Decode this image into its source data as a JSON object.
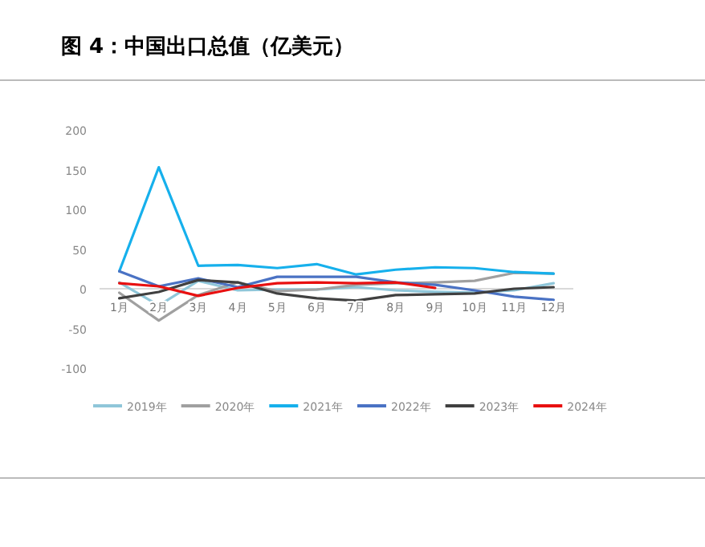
{
  "chart_data": {
    "type": "line",
    "title": "图 4：中国出口总值（亿美元）",
    "categories": [
      "1月",
      "2月",
      "3月",
      "4月",
      "5月",
      "6月",
      "7月",
      "8月",
      "9月",
      "10月",
      "11月",
      "12月"
    ],
    "series": [
      {
        "name": "2019年",
        "color": "#8fc6d9",
        "values": [
          8,
          -21,
          10,
          -2,
          -1,
          -1,
          2,
          -2,
          -4,
          -5,
          -2,
          7
        ]
      },
      {
        "name": "2020年",
        "color": "#a0a0a0",
        "values": [
          -5,
          -40,
          -8,
          8,
          -3,
          -1,
          5,
          7,
          8,
          10,
          20,
          19
        ]
      },
      {
        "name": "2021年",
        "color": "#16b0ec",
        "values": [
          22,
          153,
          29,
          30,
          26,
          31,
          18,
          24,
          27,
          26,
          21,
          19
        ]
      },
      {
        "name": "2022年",
        "color": "#4a72c4",
        "values": [
          22,
          3,
          13,
          2,
          15,
          15,
          15,
          8,
          5,
          -2,
          -10,
          -14
        ]
      },
      {
        "name": "2023年",
        "color": "#404040",
        "values": [
          -12,
          -4,
          11,
          8,
          -6,
          -12,
          -15,
          -8,
          -7,
          -6,
          0,
          2
        ]
      },
      {
        "name": "2024年",
        "color": "#e81010",
        "values": [
          7,
          3,
          -9,
          1,
          7,
          8,
          7,
          8,
          1,
          null,
          null,
          null
        ]
      }
    ],
    "ylim": [
      -100,
      200
    ],
    "yticks": [
      -100,
      -50,
      0,
      50,
      100,
      150,
      200
    ],
    "grid": false,
    "legend": "bottom",
    "marker": "none",
    "line_style": "solid"
  }
}
